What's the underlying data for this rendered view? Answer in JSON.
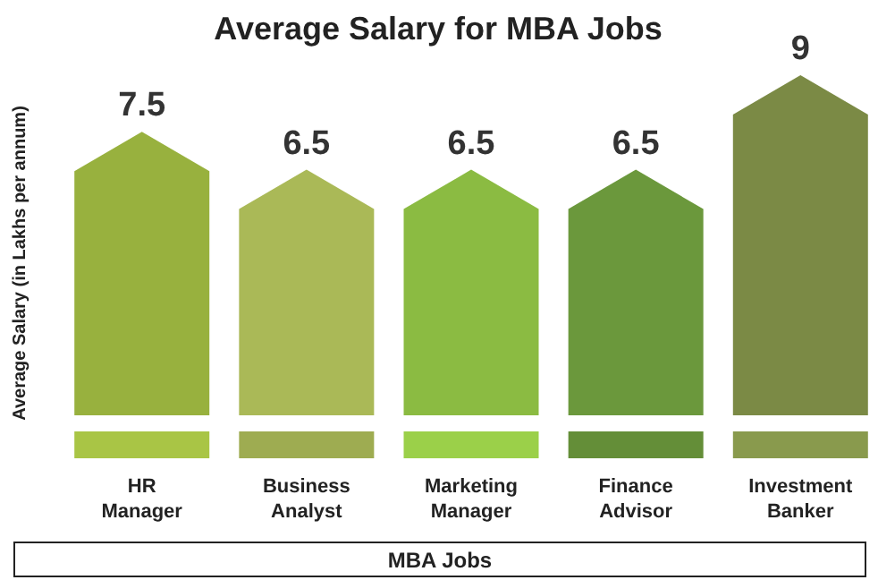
{
  "chart_data": {
    "type": "bar",
    "title": "Average Salary for MBA Jobs",
    "xlabel": "MBA Jobs",
    "ylabel": "Average Salary  (in Lakhs per annum)",
    "categories": [
      "HR Manager",
      "Business Analyst",
      "Marketing Manager",
      "Finance Advisor",
      "Investment Banker"
    ],
    "values": [
      7.5,
      6.5,
      6.5,
      6.5,
      9
    ],
    "colors": [
      "#98b13e",
      "#aab957",
      "#8bbb42",
      "#6b983c",
      "#7b8a45"
    ],
    "data_labels": true
  }
}
